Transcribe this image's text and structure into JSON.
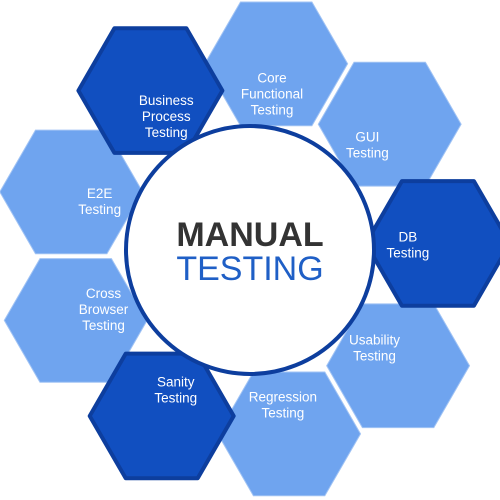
{
  "center": {
    "title": "MANUAL",
    "subtitle": "TESTING",
    "title_color": "#333333",
    "subtitle_color": "#1f5fc6"
  },
  "palette": {
    "light": "#4f90ec",
    "dark": "#114fc0",
    "outline": "#0d3e9e"
  },
  "segments": [
    {
      "id": "core-functional-testing",
      "lines": [
        "Core",
        "Functional",
        "Testing"
      ],
      "style": "light"
    },
    {
      "id": "gui-testing",
      "lines": [
        "GUI",
        "Testing"
      ],
      "style": "light"
    },
    {
      "id": "db-testing",
      "lines": [
        "DB",
        "Testing"
      ],
      "style": "dark"
    },
    {
      "id": "usability-testing",
      "lines": [
        "Usability",
        "Testing"
      ],
      "style": "light"
    },
    {
      "id": "regression-testing",
      "lines": [
        "Regression",
        "Testing"
      ],
      "style": "light"
    },
    {
      "id": "sanity-testing",
      "lines": [
        "Sanity",
        "Testing"
      ],
      "style": "dark"
    },
    {
      "id": "cross-browser-testing",
      "lines": [
        "Cross",
        "Browser",
        "Testing"
      ],
      "style": "light"
    },
    {
      "id": "e2e-testing",
      "lines": [
        "E2E",
        "Testing"
      ],
      "style": "light"
    },
    {
      "id": "business-process-testing",
      "lines": [
        "Business",
        "Process",
        "Testing"
      ],
      "style": "dark"
    }
  ]
}
